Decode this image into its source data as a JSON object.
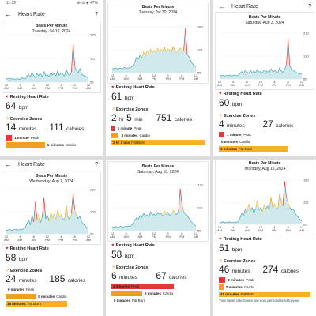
{
  "common": {
    "title": "Heart Rate",
    "chart_title": "Beats Per Minute",
    "resting_label": "Resting Heart Rate",
    "zones_label": "Exercise Zones"
  },
  "status": {
    "time": "11:22",
    "icons": "⊕ ⊘ ◈ 47%"
  },
  "panels": [
    {
      "date": "Tuesday, Jul 16, 2024",
      "ticks": [
        "12 AM",
        "4 AM",
        "8 AM",
        "12 PM",
        "4 PM",
        "8 PM",
        "12 AM"
      ],
      "y_ticks": [
        "175",
        "115",
        "55"
      ],
      "resting": "64",
      "bpm": "bpm",
      "zone_minutes": "14",
      "minutes_unit": "minutes",
      "calories": "111",
      "calories_unit": "calories",
      "zones": [
        {
          "minutes": "1 minute",
          "name": "Peak",
          "color": "#e53935",
          "fraction": 0.07
        },
        {
          "minutes": "6 minutes",
          "name": "Cardio",
          "color": "#f0a020",
          "fraction": 0.43
        }
      ],
      "chart_data": {
        "type": "line",
        "x": [
          0,
          0.5,
          1,
          1.5,
          2,
          2.5,
          3,
          3.5,
          4,
          4.5,
          5,
          5.5,
          6,
          6.5,
          7,
          7.5,
          8,
          8.5,
          9,
          9.5,
          10,
          10.5,
          11,
          11.5,
          12,
          12.5,
          13,
          13.5,
          14,
          14.5,
          15,
          15.5,
          16,
          16.5,
          17,
          17.5,
          18,
          18.5,
          19,
          19.5,
          20,
          20.5,
          21,
          21.5,
          22,
          22.5,
          23,
          23.5,
          24
        ],
        "y": [
          64,
          63,
          66,
          62,
          65,
          61,
          64,
          63,
          62,
          66,
          64,
          63,
          70,
          75,
          68,
          80,
          72,
          66,
          78,
          70,
          76,
          68,
          82,
          71,
          74,
          69,
          80,
          73,
          77,
          70,
          84,
          72,
          79,
          75,
          70,
          88,
          76,
          72,
          80,
          150,
          95,
          84,
          78,
          90,
          76,
          72,
          70,
          68,
          66
        ],
        "ylim": [
          55,
          175
        ]
      }
    },
    {
      "date": "Tuesday, Jul 30, 2024",
      "ticks": [
        "12 AM",
        "4 AM",
        "8 AM",
        "12 PM",
        "4 PM",
        "8 PM",
        "12 AM"
      ],
      "y_ticks": [
        "180",
        "115",
        "50"
      ],
      "resting": "61",
      "bpm": "bpm",
      "hours": "2",
      "hours_unit": "hr",
      "zone_minutes": "5",
      "minutes_unit": "min",
      "calories": "751",
      "calories_unit": "calories",
      "zones": [
        {
          "minutes": "1 minute",
          "name": "Peak",
          "color": "#e53935",
          "fraction": 0.04
        },
        {
          "minutes": "3 minutes",
          "name": "Cardio",
          "color": "#f0a020",
          "fraction": 0.08
        },
        {
          "minutes": "2 hr 1 min",
          "name": "Fat Burn",
          "color": "#f5b025",
          "fraction": 1.0
        }
      ],
      "chart_data": {
        "type": "line",
        "x": [
          0,
          0.5,
          1,
          1.5,
          2,
          2.5,
          3,
          3.5,
          4,
          4.5,
          5,
          5.5,
          6,
          6.5,
          7,
          7.5,
          8,
          8.5,
          9,
          9.5,
          10,
          10.5,
          11,
          11.5,
          12,
          12.5,
          13,
          13.5,
          14,
          14.5,
          15,
          15.5,
          16,
          16.5,
          17,
          17.5,
          18,
          18.5,
          19,
          19.5,
          20,
          20.5,
          21,
          21.5,
          22,
          22.5,
          23,
          23.5,
          24
        ],
        "y": [
          62,
          61,
          64,
          60,
          63,
          62,
          61,
          65,
          62,
          64,
          63,
          66,
          72,
          80,
          95,
          88,
          100,
          92,
          110,
          98,
          112,
          104,
          118,
          106,
          114,
          108,
          120,
          110,
          116,
          112,
          122,
          108,
          118,
          114,
          110,
          124,
          112,
          108,
          116,
          120,
          110,
          114,
          176,
          102,
          96,
          84,
          76,
          70,
          66
        ],
        "ylim": [
          50,
          180
        ]
      }
    },
    {
      "date": "Saturday, Aug 3, 2024",
      "ticks": [
        "12 AM",
        "4 AM",
        "8 AM",
        "12 PM",
        "4 PM",
        "8 PM",
        "12 AM"
      ],
      "y_ticks": [
        "210",
        "130",
        "50"
      ],
      "resting": "60",
      "bpm": "bpm",
      "zone_minutes": "4",
      "minutes_unit": "minutes",
      "calories": "27",
      "calories_unit": "calories",
      "zones": [
        {
          "minutes": "1 minute",
          "name": "Peak",
          "color": "#e53935",
          "fraction": 0.06
        },
        {
          "minutes": "0 minutes",
          "name": "Cardio",
          "color": "#f0a020",
          "fraction": 0.0
        },
        {
          "minutes": "3 minutes",
          "name": "Fat Burn",
          "color": "#f5b025",
          "fraction": 0.75
        }
      ],
      "chart_data": {
        "type": "line",
        "x": [
          0,
          0.5,
          1,
          1.5,
          2,
          2.5,
          3,
          3.5,
          4,
          4.5,
          5,
          5.5,
          6,
          6.5,
          7,
          7.5,
          8,
          8.5,
          9,
          9.5,
          10,
          10.5,
          11,
          11.5,
          12,
          12.5,
          13,
          13.5,
          14,
          14.5,
          15,
          15.5,
          16,
          16.5,
          17,
          17.5,
          18,
          18.5,
          19,
          19.5,
          20,
          20.5,
          21,
          21.5,
          22,
          22.5,
          23,
          23.5,
          24
        ],
        "y": [
          62,
          61,
          63,
          60,
          62,
          61,
          64,
          60,
          63,
          62,
          61,
          64,
          70,
          76,
          68,
          82,
          74,
          70,
          80,
          72,
          78,
          70,
          84,
          74,
          76,
          70,
          82,
          74,
          78,
          72,
          86,
          74,
          80,
          76,
          72,
          90,
          78,
          74,
          82,
          100,
          190,
          96,
          84,
          80,
          76,
          72,
          70,
          68,
          66
        ],
        "ylim": [
          50,
          210
        ]
      }
    },
    {
      "date": "Wednesday, Aug 7, 2024",
      "ticks": [
        "12 AM",
        "4 AM",
        "8 AM",
        "12 PM",
        "4 PM",
        "8 PM",
        "12 AM"
      ],
      "y_ticks": [
        "160",
        "105",
        "50"
      ],
      "resting": "58",
      "bpm": "bpm",
      "zone_minutes": "24",
      "minutes_unit": "minutes",
      "calories": "185",
      "calories_unit": "calories",
      "zones": [
        {
          "minutes": "0 minutes",
          "name": "Peak",
          "color": "#e53935",
          "fraction": 0.0
        },
        {
          "minutes": "8 minutes",
          "name": "Cardio",
          "color": "#f0a020",
          "fraction": 0.33
        },
        {
          "minutes": "16 minutes",
          "name": "Fat Burn",
          "color": "#f5b025",
          "fraction": 0.67
        }
      ],
      "chart_data": {
        "type": "line",
        "x": [
          0,
          0.5,
          1,
          1.5,
          2,
          2.5,
          3,
          3.5,
          4,
          4.5,
          5,
          5.5,
          6,
          6.5,
          7,
          7.5,
          8,
          8.5,
          9,
          9.5,
          10,
          10.5,
          11,
          11.5,
          12,
          12.5,
          13,
          13.5,
          14,
          14.5,
          15,
          15.5,
          16,
          16.5,
          17,
          17.5,
          18,
          18.5,
          19,
          19.5,
          20,
          20.5,
          21,
          21.5,
          22,
          22.5,
          23,
          23.5,
          24
        ],
        "y": [
          60,
          59,
          62,
          58,
          61,
          60,
          62,
          59,
          61,
          60,
          63,
          66,
          74,
          86,
          72,
          96,
          80,
          130,
          84,
          100,
          78,
          92,
          140,
          88,
          96,
          82,
          104,
          90,
          100,
          86,
          110,
          92,
          98,
          88,
          84,
          120,
          92,
          86,
          100,
          150,
          110,
          96,
          88,
          94,
          80,
          74,
          70,
          66,
          62
        ],
        "ylim": [
          50,
          160
        ]
      }
    },
    {
      "date": "Saturday, Aug 10, 2024",
      "ticks": [
        "12 AM",
        "4 AM",
        "8 AM",
        "12 PM",
        "4 PM",
        "8 PM",
        "12 AM"
      ],
      "y_ticks": [
        "170",
        "110",
        "50"
      ],
      "resting": "58",
      "bpm": "bpm",
      "zone_minutes": "6",
      "minutes_unit": "minutes",
      "calories": "67",
      "calories_unit": "calories",
      "zones": [
        {
          "minutes": "4 minutes",
          "name": "Peak",
          "color": "#e53935",
          "fraction": 0.67
        },
        {
          "minutes": "2 minutes",
          "name": "Cardio",
          "color": "#f0a020",
          "fraction": 0.33
        },
        {
          "minutes": "0 minutes",
          "name": "Fat Burn",
          "color": "#f5b025",
          "fraction": 0.0
        }
      ],
      "chart_data": {
        "type": "line",
        "x": [
          0,
          0.5,
          1,
          1.5,
          2,
          2.5,
          3,
          3.5,
          4,
          4.5,
          5,
          5.5,
          6,
          6.5,
          7,
          7.5,
          8,
          8.5,
          9,
          9.5,
          10,
          10.5,
          11,
          11.5,
          12,
          12.5,
          13,
          13.5,
          14,
          14.5,
          15,
          15.5,
          16,
          16.5,
          17,
          17.5,
          18,
          18.5,
          19,
          19.5,
          20,
          20.5,
          21,
          21.5,
          22,
          22.5,
          23,
          23.5,
          24
        ],
        "y": [
          60,
          59,
          61,
          58,
          60,
          62,
          59,
          61,
          60,
          62,
          61,
          64,
          70,
          78,
          84,
          80,
          90,
          84,
          96,
          88,
          92,
          86,
          100,
          90,
          94,
          88,
          98,
          92,
          96,
          88,
          102,
          92,
          98,
          90,
          94,
          104,
          96,
          92,
          100,
          160,
          120,
          100,
          94,
          90,
          82,
          76,
          70,
          66,
          62
        ],
        "ylim": [
          50,
          170
        ]
      }
    },
    {
      "date": "Thursday, Aug 15, 2024",
      "ticks": [
        "12 AM",
        "4 AM",
        "8 AM",
        "12 PM",
        "4 PM",
        "8 PM",
        "12 AM"
      ],
      "y_ticks": [
        "180",
        "115",
        "50"
      ],
      "resting": "51",
      "bpm": "bpm",
      "zone_minutes": "46",
      "minutes_unit": "minutes",
      "calories": "274",
      "calories_unit": "calories",
      "zones": [
        {
          "minutes": "3 minutes",
          "name": "Peak",
          "color": "#e53935",
          "fraction": 0.07
        },
        {
          "minutes": "2 minutes",
          "name": "Cardio",
          "color": "#f0a020",
          "fraction": 0.05
        },
        {
          "minutes": "41 minutes",
          "name": "Fat Burn",
          "color": "#f5b025",
          "fraction": 1.0
        }
      ],
      "note": "Your heart rate zones are now personalized to your",
      "chart_data": {
        "type": "line",
        "x": [
          0,
          0.5,
          1,
          1.5,
          2,
          2.5,
          3,
          3.5,
          4,
          4.5,
          5,
          5.5,
          6,
          6.5,
          7,
          7.5,
          8,
          8.5,
          9,
          9.5,
          10,
          10.5,
          11,
          11.5,
          12,
          12.5,
          13,
          13.5,
          14,
          14.5,
          15,
          15.5,
          16,
          16.5,
          17,
          17.5,
          18,
          18.5,
          19,
          19.5,
          20,
          20.5,
          21,
          21.5,
          22,
          22.5,
          23,
          23.5,
          24
        ],
        "y": [
          56,
          55,
          58,
          54,
          57,
          55,
          58,
          54,
          56,
          57,
          55,
          60,
          70,
          84,
          76,
          96,
          86,
          110,
          90,
          100,
          84,
          96,
          120,
          92,
          100,
          88,
          108,
          96,
          104,
          92,
          130,
          100,
          110,
          98,
          94,
          140,
          120,
          104,
          176,
          130,
          112,
          100,
          92,
          96,
          84,
          76,
          70,
          64,
          60
        ],
        "ylim": [
          50,
          180
        ]
      }
    }
  ]
}
